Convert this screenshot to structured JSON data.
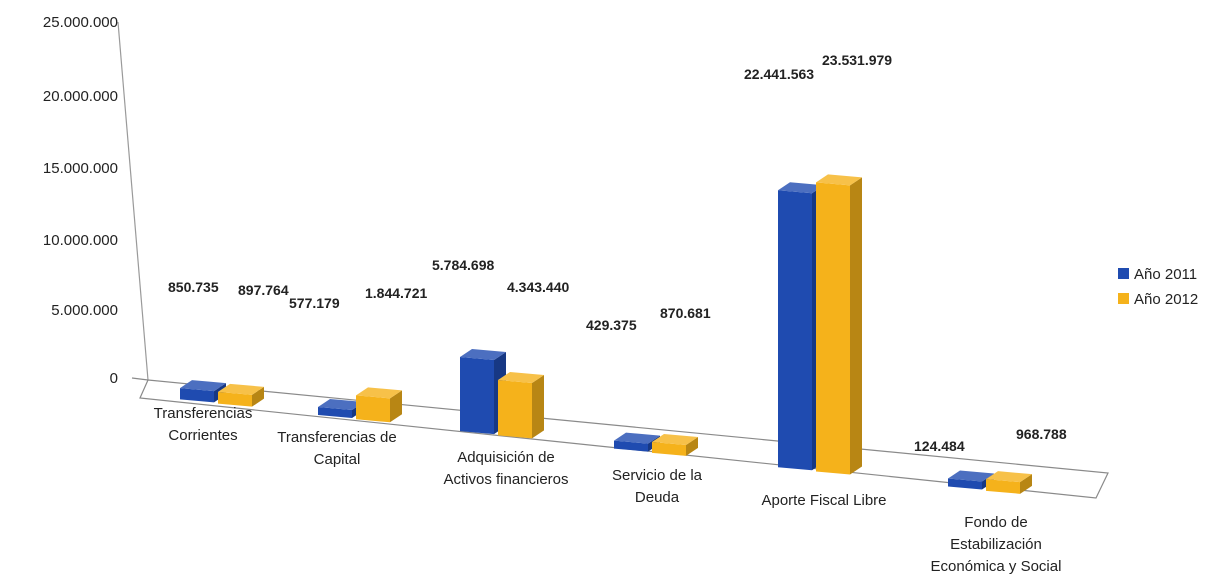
{
  "chart_data": {
    "type": "bar",
    "categories": [
      [
        "Transferencias",
        "Corrientes"
      ],
      [
        "Transferencias de",
        "Capital"
      ],
      [
        "Adquisición de",
        "Activos financieros"
      ],
      [
        "Servicio de la",
        "Deuda"
      ],
      [
        "Aporte Fiscal Libre"
      ],
      [
        "Fondo de",
        "Estabilización",
        "Económica y Social"
      ]
    ],
    "series": [
      {
        "name": "Año 2011",
        "color": "#1f4bb0",
        "values": [
          850735,
          577179,
          5784698,
          429375,
          22441563,
          124484
        ],
        "labels": [
          "850.735",
          "577.179",
          "5.784.698",
          "429.375",
          "22.441.563",
          "124.484"
        ]
      },
      {
        "name": "Año 2012",
        "color": "#f5b21b",
        "values": [
          897764,
          1844721,
          4343440,
          870681,
          23531979,
          968788
        ],
        "labels": [
          "897.764",
          "1.844.721",
          "4.343.440",
          "870.681",
          "23.531.979",
          "968.788"
        ]
      }
    ],
    "yticks": [
      "0",
      "5.000.000",
      "10.000.000",
      "15.000.000",
      "20.000.000",
      "25.000.000"
    ],
    "ylim": [
      0,
      25000000
    ],
    "grid": false,
    "legend": "right",
    "style": "3d-clustered-bar"
  }
}
